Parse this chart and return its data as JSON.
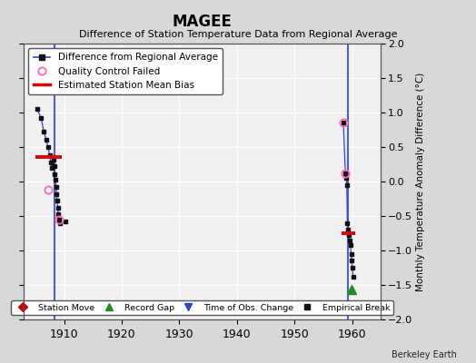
{
  "title": "MAGEE",
  "subtitle": "Difference of Station Temperature Data from Regional Average",
  "ylabel_right": "Monthly Temperature Anomaly Difference (°C)",
  "credit": "Berkeley Earth",
  "xlim": [
    1903,
    1965
  ],
  "ylim": [
    -2,
    2
  ],
  "yticks": [
    -2,
    -1.5,
    -1,
    -0.5,
    0,
    0.5,
    1,
    1.5,
    2
  ],
  "xticks": [
    1910,
    1920,
    1930,
    1940,
    1950,
    1960
  ],
  "background_color": "#d8d8d8",
  "plot_bg_color": "#f0f0f0",
  "segment1_vline_x": 1908.3,
  "segment1_data": [
    [
      1905.3,
      1.05
    ],
    [
      1906.0,
      0.92
    ],
    [
      1906.5,
      0.72
    ],
    [
      1906.9,
      0.6
    ],
    [
      1907.2,
      0.5
    ],
    [
      1907.5,
      0.38
    ],
    [
      1907.7,
      0.28
    ],
    [
      1907.9,
      0.2
    ],
    [
      1908.1,
      0.32
    ],
    [
      1908.3,
      0.22
    ],
    [
      1908.4,
      0.1
    ],
    [
      1908.5,
      0.02
    ],
    [
      1908.6,
      -0.08
    ],
    [
      1908.7,
      -0.18
    ],
    [
      1908.8,
      -0.28
    ],
    [
      1908.9,
      -0.38
    ],
    [
      1909.0,
      -0.48
    ],
    [
      1909.1,
      -0.55
    ],
    [
      1909.3,
      -0.6
    ],
    [
      1910.3,
      -0.58
    ]
  ],
  "segment1_bias_y": 0.35,
  "segment1_bias_x1": 1905.0,
  "segment1_bias_x2": 1909.6,
  "segment2_vline_x": 1959.3,
  "segment2_data": [
    [
      1958.5,
      0.85
    ],
    [
      1958.85,
      0.12
    ],
    [
      1959.0,
      0.05
    ],
    [
      1959.1,
      -0.05
    ],
    [
      1959.2,
      -0.6
    ],
    [
      1959.35,
      -0.7
    ],
    [
      1959.5,
      -0.78
    ],
    [
      1959.6,
      -0.85
    ],
    [
      1959.7,
      -0.92
    ],
    [
      1959.85,
      -1.05
    ],
    [
      1959.95,
      -1.15
    ],
    [
      1960.05,
      -1.25
    ],
    [
      1960.2,
      -1.38
    ]
  ],
  "segment2_bias_y": -0.75,
  "segment2_bias_x1": 1958.2,
  "segment2_bias_x2": 1960.5,
  "qc_failed_points": [
    [
      1907.2,
      -0.12
    ],
    [
      1909.1,
      -0.55
    ],
    [
      1958.5,
      0.85
    ],
    [
      1958.85,
      0.12
    ]
  ],
  "empirical_break_x": 1959.85,
  "empirical_break_y": -1.56,
  "grid_color": "#ffffff",
  "line_color": "#3344cc",
  "bias_color": "#dd0000",
  "qc_color": "#ff69b4",
  "marker_color": "#111111",
  "green_color": "#228B22"
}
